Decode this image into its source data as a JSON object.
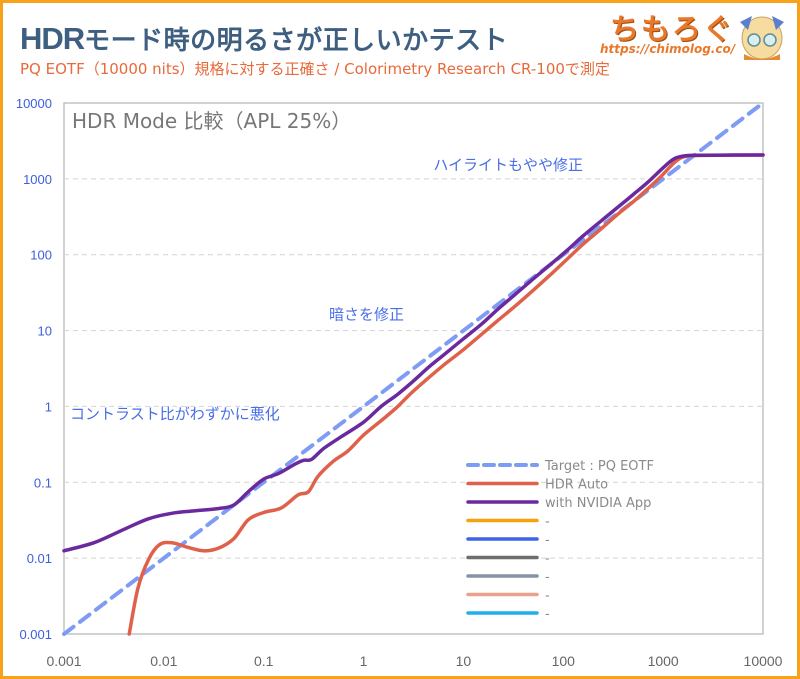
{
  "header": {
    "title_prefix": "HDR",
    "title_rest": "モード時の明るさが正しいかテスト",
    "subtitle": "PQ EOTF（10000 nits）規格に対する正確さ / Colorimetry Research CR-100で測定",
    "logo_text": "ちもろぐ",
    "logo_url": "https://chimolog.co/"
  },
  "colors": {
    "frame": "#f7a21b",
    "title": "#3f5f80",
    "subtitle": "#e8693a",
    "annotation": "#4a6ee8"
  },
  "chart_data": {
    "type": "line",
    "title": "HDR Mode 比較（APL 25%）",
    "xscale": "log",
    "yscale": "log",
    "xlim": [
      0.001,
      10000
    ],
    "ylim": [
      0.001,
      10000
    ],
    "x_ticks": [
      "0.001",
      "0.01",
      "0.1",
      "1",
      "10",
      "100",
      "1000",
      "10000"
    ],
    "y_ticks": [
      "0.001",
      "0.01",
      "0.1",
      "1",
      "10",
      "100",
      "1000",
      "10000"
    ],
    "grid": "horizontal dashed",
    "legend_position": "bottom-right",
    "annotations": [
      {
        "text": "ハイライトもやや修正",
        "x": 5,
        "y": 1300
      },
      {
        "text": "暗さを修正",
        "x": 0.45,
        "y": 14
      },
      {
        "text": "コントラスト比がわずかに悪化",
        "x": 0.00115,
        "y": 0.68
      }
    ],
    "series": [
      {
        "name": "Target : PQ EOTF",
        "color": "#7f9cf5",
        "dash": true,
        "points": [
          [
            0.001,
            0.001
          ],
          [
            10000,
            10000
          ]
        ]
      },
      {
        "name": "HDR Auto",
        "color": "#e0614a",
        "dash": false,
        "points": [
          [
            0.0045,
            0.001
          ],
          [
            0.0055,
            0.004
          ],
          [
            0.007,
            0.0095
          ],
          [
            0.009,
            0.015
          ],
          [
            0.012,
            0.016
          ],
          [
            0.017,
            0.014
          ],
          [
            0.025,
            0.0125
          ],
          [
            0.035,
            0.0135
          ],
          [
            0.05,
            0.018
          ],
          [
            0.07,
            0.032
          ],
          [
            0.1,
            0.04
          ],
          [
            0.15,
            0.046
          ],
          [
            0.22,
            0.068
          ],
          [
            0.28,
            0.075
          ],
          [
            0.35,
            0.12
          ],
          [
            0.5,
            0.19
          ],
          [
            0.7,
            0.26
          ],
          [
            1,
            0.42
          ],
          [
            1.5,
            0.65
          ],
          [
            2.2,
            1.0
          ],
          [
            3,
            1.5
          ],
          [
            4.5,
            2.4
          ],
          [
            6.5,
            3.6
          ],
          [
            10,
            5.6
          ],
          [
            15,
            8.8
          ],
          [
            22,
            13.5
          ],
          [
            33,
            21
          ],
          [
            50,
            34
          ],
          [
            75,
            55
          ],
          [
            110,
            88
          ],
          [
            160,
            140
          ],
          [
            240,
            220
          ],
          [
            350,
            340
          ],
          [
            520,
            520
          ],
          [
            750,
            800
          ],
          [
            1000,
            1150
          ],
          [
            1300,
            1650
          ],
          [
            1600,
            1950
          ],
          [
            2200,
            2030
          ],
          [
            4000,
            2050
          ],
          [
            10000,
            2060
          ]
        ]
      },
      {
        "name": "with NVIDIA App",
        "color": "#6a2a9e",
        "dash": false,
        "points": [
          [
            0.001,
            0.0125
          ],
          [
            0.002,
            0.016
          ],
          [
            0.004,
            0.024
          ],
          [
            0.007,
            0.033
          ],
          [
            0.012,
            0.039
          ],
          [
            0.02,
            0.042
          ],
          [
            0.035,
            0.045
          ],
          [
            0.05,
            0.05
          ],
          [
            0.07,
            0.075
          ],
          [
            0.1,
            0.11
          ],
          [
            0.14,
            0.13
          ],
          [
            0.2,
            0.17
          ],
          [
            0.25,
            0.195
          ],
          [
            0.3,
            0.2
          ],
          [
            0.4,
            0.28
          ],
          [
            0.6,
            0.4
          ],
          [
            1,
            0.62
          ],
          [
            1.5,
            1.0
          ],
          [
            2.2,
            1.45
          ],
          [
            3.2,
            2.2
          ],
          [
            4.5,
            3.3
          ],
          [
            6.5,
            4.9
          ],
          [
            10,
            7.8
          ],
          [
            15,
            12
          ],
          [
            22,
            19
          ],
          [
            33,
            30
          ],
          [
            50,
            48
          ],
          [
            75,
            75
          ],
          [
            110,
            115
          ],
          [
            160,
            180
          ],
          [
            240,
            280
          ],
          [
            350,
            420
          ],
          [
            500,
            620
          ],
          [
            700,
            900
          ],
          [
            1000,
            1400
          ],
          [
            1300,
            1850
          ],
          [
            1700,
            2020
          ],
          [
            2500,
            2050
          ],
          [
            5000,
            2060
          ],
          [
            10000,
            2065
          ]
        ]
      },
      {
        "name": "-",
        "color": "#f5a20c",
        "dash": false,
        "points": []
      },
      {
        "name": "-",
        "color": "#3e63e6",
        "dash": false,
        "points": []
      },
      {
        "name": "-",
        "color": "#6e6e6e",
        "dash": false,
        "points": []
      },
      {
        "name": "-",
        "color": "#8494a8",
        "dash": false,
        "points": []
      },
      {
        "name": "-",
        "color": "#eaa08c",
        "dash": false,
        "points": []
      },
      {
        "name": "-",
        "color": "#1fb0ea",
        "dash": false,
        "points": []
      }
    ]
  }
}
